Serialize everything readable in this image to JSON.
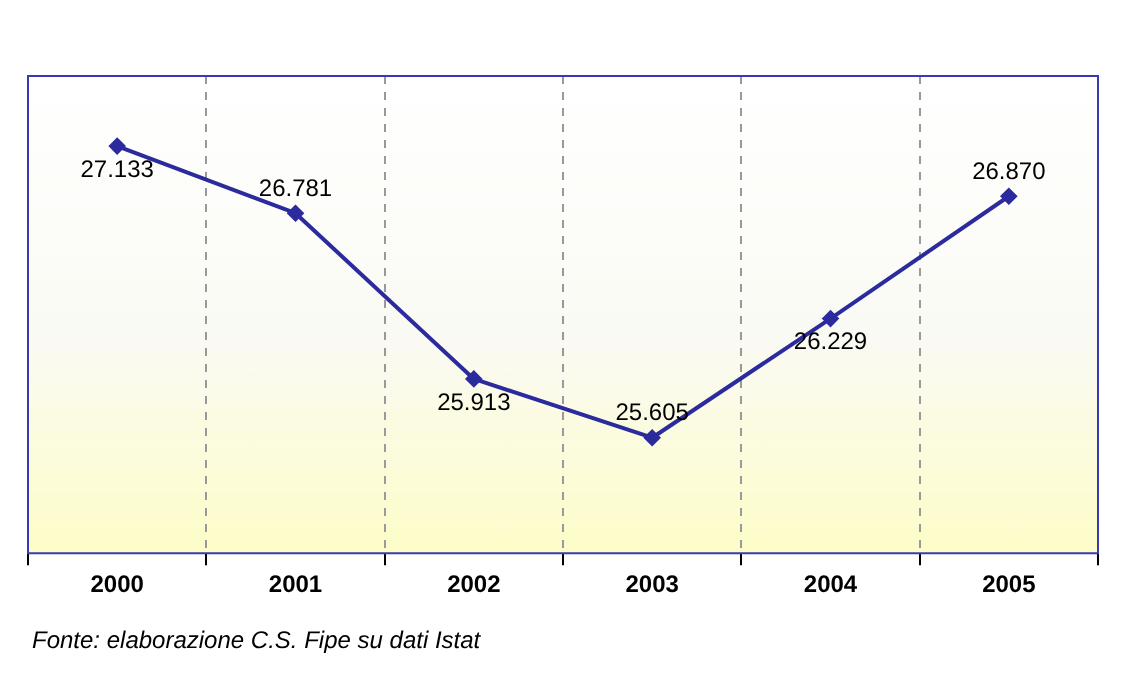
{
  "chart_data": {
    "type": "line",
    "categories": [
      "2000",
      "2001",
      "2002",
      "2003",
      "2004",
      "2005"
    ],
    "series": [
      {
        "color": "#2b2b9e",
        "values": [
          27133,
          26781,
          25913,
          25605,
          26229,
          26870
        ],
        "value_labels": [
          "27.133",
          "26.781",
          "25.913",
          "25.605",
          "26.229",
          "26.870"
        ]
      }
    ],
    "ylim": [
      25000,
      27500
    ],
    "tick_labels": "x",
    "grid": "x",
    "legend": false,
    "marker": "diamond",
    "line_style": "solid",
    "annotations": [
      "Fonte: elaborazione C.S. Fipe su dati Istat"
    ]
  }
}
